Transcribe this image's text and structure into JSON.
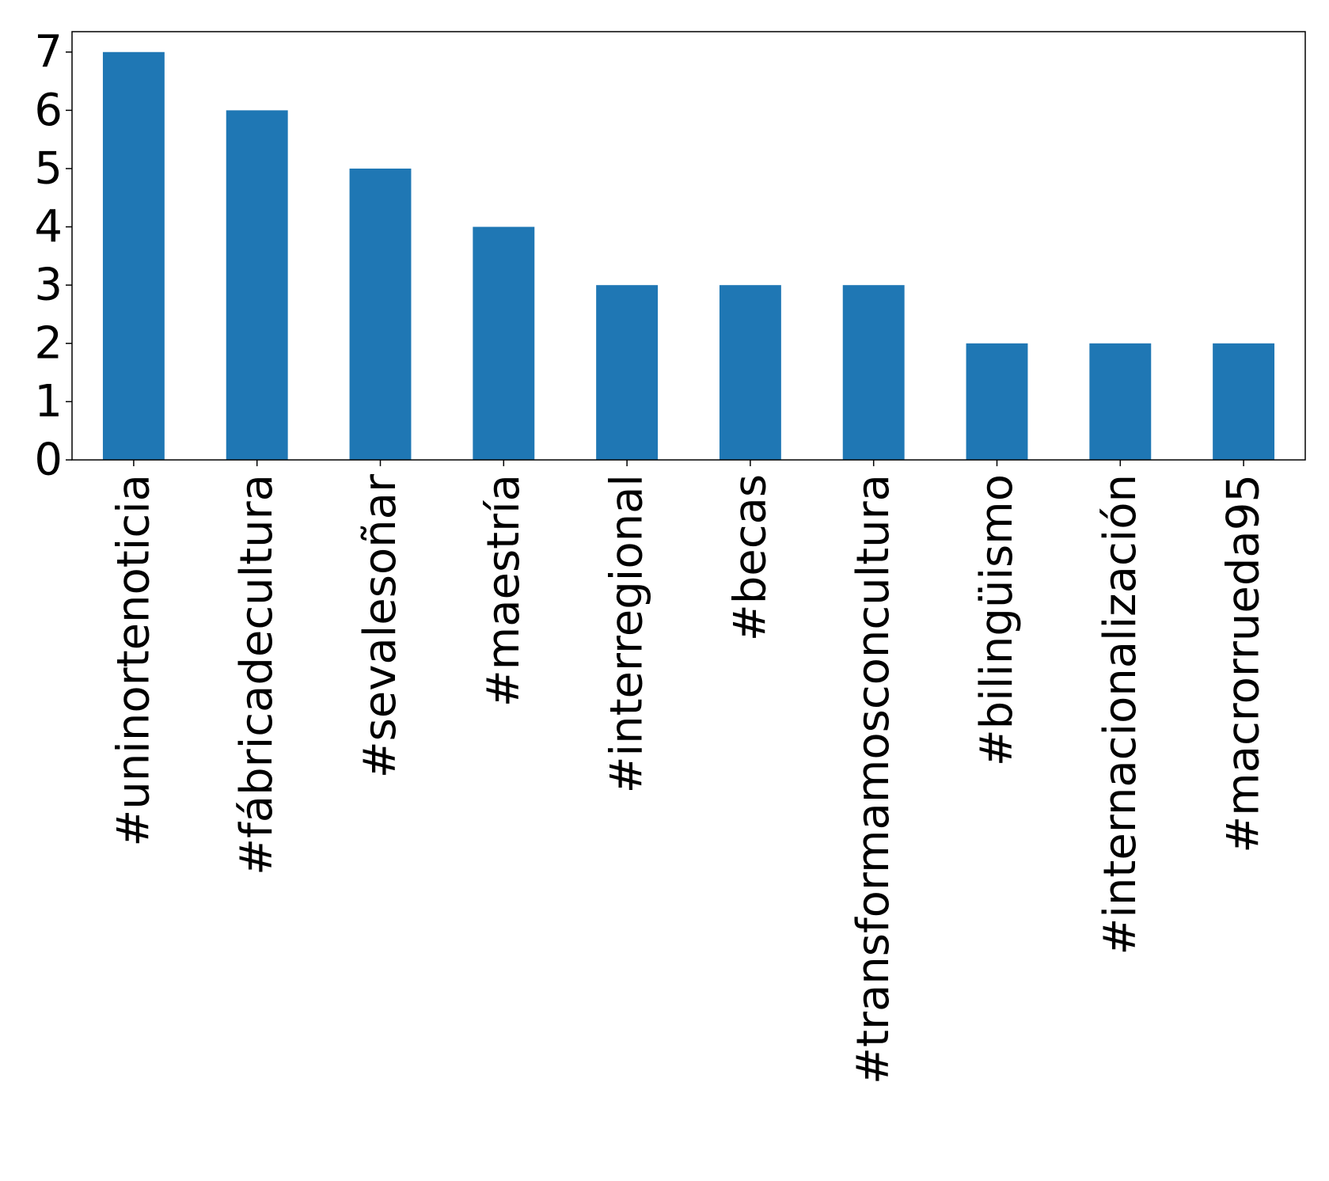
{
  "chart_data": {
    "type": "bar",
    "categories": [
      "#uninortenoticia",
      "#fábricadecultura",
      "#sevalesoñar",
      "#maestría",
      "#interregional",
      "#becas",
      "#transformamosconcultura",
      "#bilingüismo",
      "#internacionalización",
      "#macrorrueda95"
    ],
    "values": [
      7,
      6,
      5,
      4,
      3,
      3,
      3,
      2,
      2,
      2
    ],
    "color": "#1f77b4",
    "ylim": [
      0,
      7.35
    ],
    "yticks": [
      0,
      1,
      2,
      3,
      4,
      5,
      6,
      7
    ],
    "grid": false
  }
}
